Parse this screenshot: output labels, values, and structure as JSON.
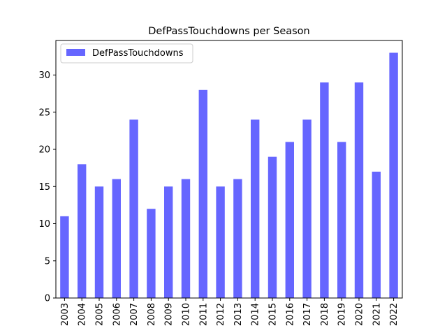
{
  "chart_data": {
    "type": "bar",
    "title": "DefPassTouchdowns per Season",
    "xlabel": "",
    "ylabel": "",
    "categories": [
      "2003",
      "2004",
      "2005",
      "2006",
      "2007",
      "2008",
      "2009",
      "2010",
      "2011",
      "2012",
      "2013",
      "2014",
      "2015",
      "2016",
      "2017",
      "2018",
      "2019",
      "2020",
      "2021",
      "2022"
    ],
    "series": [
      {
        "name": "DefPassTouchdowns",
        "color": "#6666ff",
        "values": [
          11,
          18,
          15,
          16,
          24,
          12,
          15,
          16,
          28,
          15,
          16,
          24,
          19,
          21,
          24,
          29,
          21,
          29,
          17,
          33
        ]
      }
    ],
    "ylim": [
      0,
      34.65
    ],
    "yticks": [
      0,
      5,
      10,
      15,
      20,
      25,
      30
    ],
    "grid": false,
    "legend_position": "top-left"
  }
}
